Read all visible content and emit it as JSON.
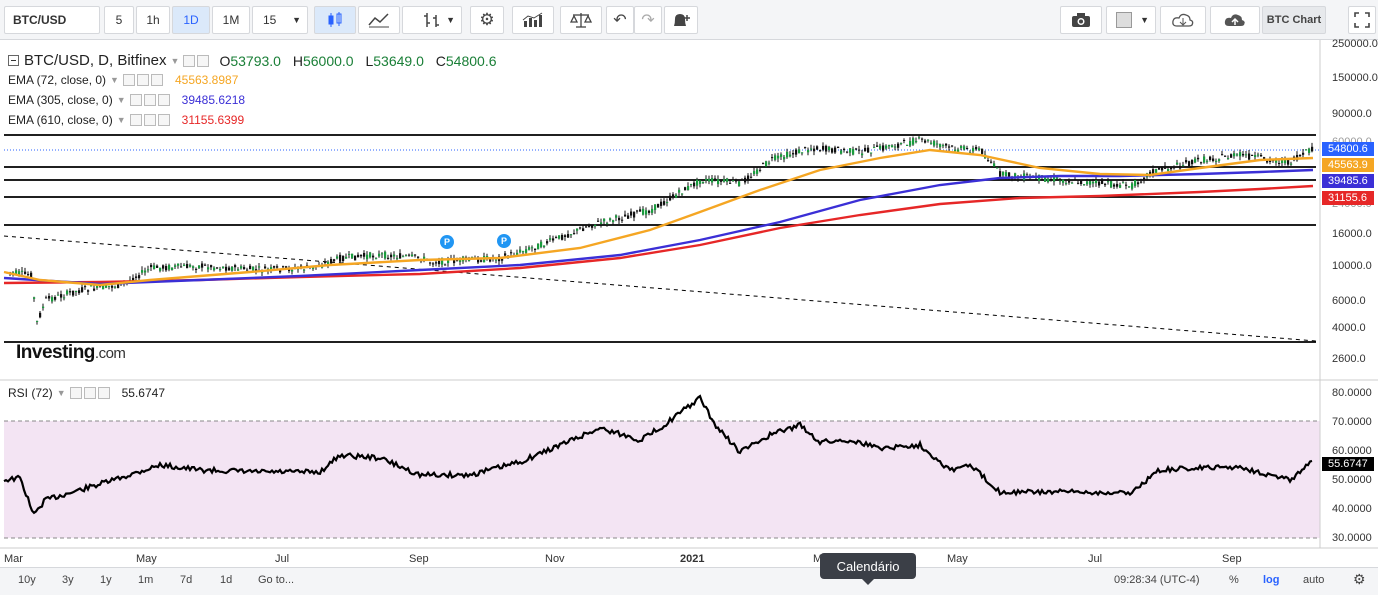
{
  "toolbar": {
    "symbol": "BTC/USD",
    "intervals": [
      "5",
      "1h",
      "1D",
      "1M",
      "15"
    ],
    "selected_interval": "1D",
    "brand_label": "BTC Chart"
  },
  "legend": {
    "title": "BTC/USD, D, Bitfinex",
    "ohlc": {
      "open_label": "O",
      "open": "53793.0",
      "high_label": "H",
      "high": "56000.0",
      "low_label": "L",
      "low": "53649.0",
      "close_label": "C",
      "close": "54800.6"
    },
    "ema72": {
      "label": "EMA (72, close, 0)",
      "value": "45563.8987",
      "color": "#f5a623"
    },
    "ema305": {
      "label": "EMA (305, close, 0)",
      "value": "39485.6218",
      "color": "#3b2fd6"
    },
    "ema610": {
      "label": "EMA (610, close, 0)",
      "value": "31155.6399",
      "color": "#e62727"
    }
  },
  "price_axis": {
    "labels": [
      "250000.0",
      "150000.0",
      "90000.0",
      "60000.0",
      "40000.0",
      "24000.0",
      "16000.0",
      "10000.0",
      "6000.0",
      "4000.0",
      "2600.0"
    ],
    "tags": [
      {
        "text": "54800.6",
        "color": "#2962ff"
      },
      {
        "text": "45563.9",
        "color": "#f5a623"
      },
      {
        "text": "39485.6",
        "color": "#3b2fd6"
      },
      {
        "text": "31155.6",
        "color": "#e62727"
      }
    ]
  },
  "rsi": {
    "label": "RSI (72)",
    "value": "55.6747",
    "axis_labels": [
      "80.0000",
      "70.0000",
      "60.0000",
      "50.0000",
      "40.0000",
      "30.0000"
    ],
    "tag": "55.6747",
    "band_color": "#f3e4f3"
  },
  "x_axis": {
    "labels": [
      "Mar",
      "May",
      "Jul",
      "Sep",
      "Nov",
      "2021",
      "M",
      "May",
      "Jul",
      "Sep"
    ]
  },
  "markers": [
    "P",
    "P"
  ],
  "logo": {
    "main": "Investing",
    "suffix": ".com"
  },
  "bottombar": {
    "ranges": [
      "10y",
      "3y",
      "1y",
      "1m",
      "7d",
      "1d"
    ],
    "goto": "Go to...",
    "time": "09:28:34 (UTC-4)",
    "percent": "%",
    "log": "log",
    "auto": "auto"
  },
  "tooltip": "Calendário",
  "icons": [
    "candles-icon",
    "line-chart-icon",
    "bars-icon",
    "gear-icon",
    "indicators-icon",
    "compare-icon",
    "undo-icon",
    "redo-icon",
    "alert-icon",
    "camera-icon",
    "color-box-icon",
    "cloud-download-icon",
    "cloud-upload-icon",
    "fullscreen-icon"
  ]
}
